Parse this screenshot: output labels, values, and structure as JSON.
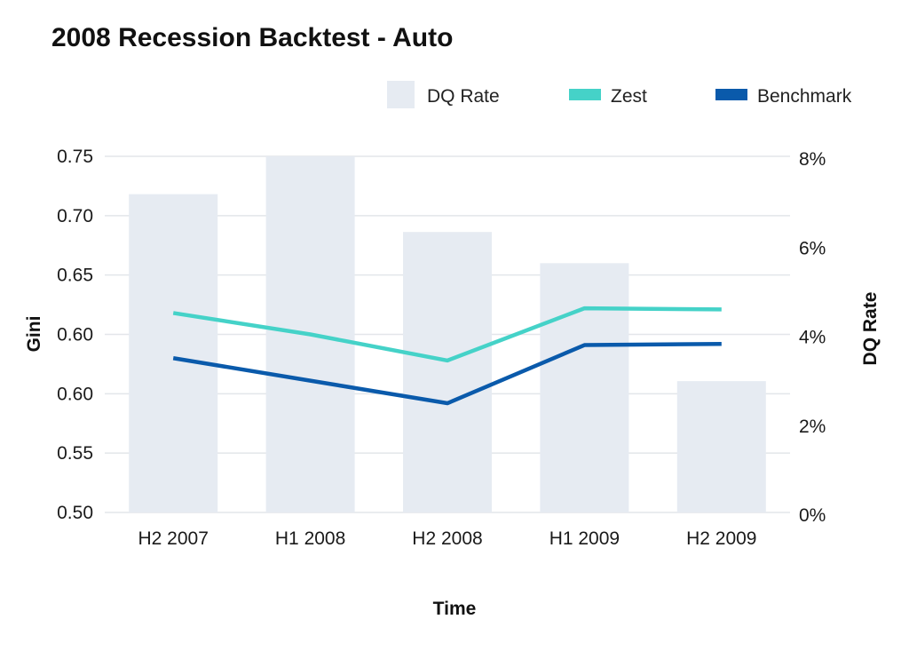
{
  "chart_data": {
    "type": "bar",
    "title": "2008 Recession Backtest - Auto",
    "xlabel": "Time",
    "ylabel": "Gini",
    "y2label": "DQ Rate",
    "categories": [
      "H2 2007",
      "H1 2008",
      "H2 2008",
      "H1 2009",
      "H2 2009"
    ],
    "y_ticks": [
      "0.50",
      "0.55",
      "0.60",
      "0.60",
      "0.65",
      "0.70",
      "0.75"
    ],
    "y2_ticks": [
      "0%",
      "2%",
      "4%",
      "6%",
      "8%"
    ],
    "ylim": [
      0.5,
      0.8
    ],
    "y2lim": [
      0,
      8
    ],
    "grid": true,
    "legend_position": "top-right",
    "series": [
      {
        "name": "DQ Rate",
        "kind": "bar",
        "axis": "right",
        "color": "#e6ebf2",
        "values": [
          7.15,
          8.0,
          6.3,
          5.6,
          2.95
        ]
      },
      {
        "name": "Zest",
        "kind": "line",
        "axis": "left",
        "color": "#45d2c8",
        "values": [
          0.668,
          0.65,
          0.628,
          0.672,
          0.671
        ]
      },
      {
        "name": "Benchmark",
        "kind": "line",
        "axis": "left",
        "color": "#0a5aab",
        "values": [
          0.63,
          0.611,
          0.592,
          0.641,
          0.642
        ]
      }
    ]
  }
}
